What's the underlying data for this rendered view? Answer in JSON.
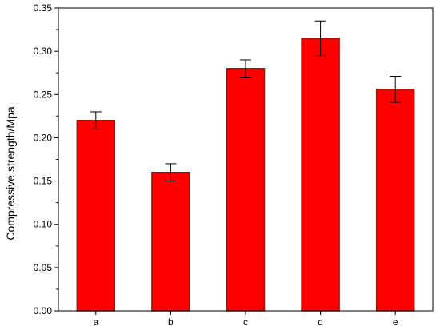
{
  "chart_data": {
    "type": "bar",
    "title": "",
    "xlabel": "",
    "ylabel": "Compressive strength/Mpa",
    "categories": [
      "a",
      "b",
      "c",
      "d",
      "e"
    ],
    "values": [
      0.22,
      0.16,
      0.28,
      0.315,
      0.256
    ],
    "errors": [
      0.01,
      0.01,
      0.01,
      0.02,
      0.015
    ],
    "ylim": [
      0,
      0.35
    ],
    "yticks": [
      "0.00",
      "0.05",
      "0.10",
      "0.15",
      "0.20",
      "0.25",
      "0.30",
      "0.35"
    ],
    "grid": false,
    "legend": "none",
    "colors": {
      "bar_fill": "#ff0000",
      "bar_edge": "#8b1a10",
      "axis": "#000000",
      "error_bar": "#000000"
    }
  }
}
